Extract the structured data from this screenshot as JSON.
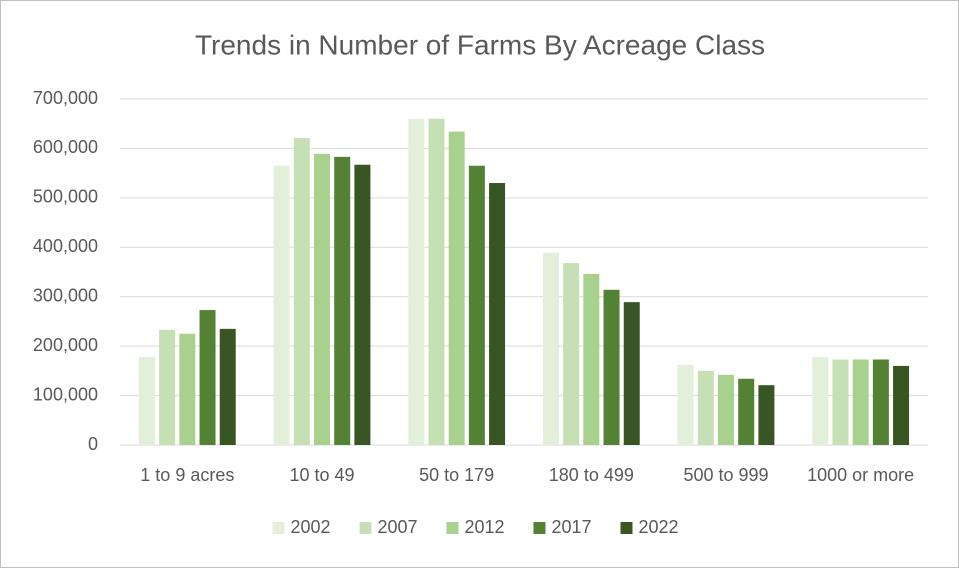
{
  "chart_data": {
    "type": "bar",
    "title": "Trends in Number of Farms By Acreage Class",
    "categories": [
      "1 to 9 acres",
      "10 to 49",
      "50 to 179",
      "180 to 499",
      "500 to 999",
      "1000 or more"
    ],
    "series": [
      {
        "name": "2002",
        "color": "#e2efd9",
        "values": [
          178000,
          565000,
          660000,
          389000,
          162000,
          178000
        ]
      },
      {
        "name": "2007",
        "color": "#c5e0b4",
        "values": [
          233000,
          621000,
          660000,
          368000,
          150000,
          173000
        ]
      },
      {
        "name": "2012",
        "color": "#a9d18e",
        "values": [
          225000,
          589000,
          634000,
          346000,
          142000,
          173000
        ]
      },
      {
        "name": "2017",
        "color": "#548235",
        "values": [
          273000,
          583000,
          565000,
          314000,
          134000,
          173000
        ]
      },
      {
        "name": "2022",
        "color": "#375623",
        "values": [
          235000,
          567000,
          530000,
          289000,
          121000,
          160000
        ]
      }
    ],
    "ylim": [
      0,
      700000
    ],
    "yticks": [
      0,
      {
        "value": 100000,
        "label": "100,000"
      },
      {
        "value": 200000,
        "label": "200,000"
      },
      {
        "value": 300000,
        "label": "300,000"
      },
      {
        "value": 400000,
        "label": "400,000"
      },
      {
        "value": 500000,
        "label": "500,000"
      },
      {
        "value": 600000,
        "label": "600,000"
      },
      {
        "value": 700000,
        "label": "700,000"
      }
    ],
    "grid": true,
    "legend": "bottom"
  }
}
